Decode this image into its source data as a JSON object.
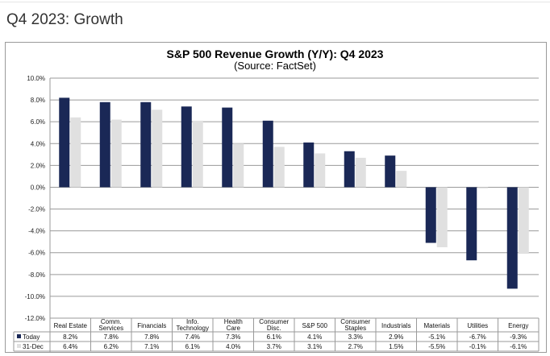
{
  "page": {
    "heading": "Q4 2023: Growth"
  },
  "colors": {
    "today": "#1a2856",
    "dec31": "#e0e0e0",
    "grid": "#9a9a9a",
    "frame": "#9a9a9a"
  },
  "chart_data": {
    "type": "bar",
    "title": "S&P 500 Revenue Growth (Y/Y): Q4 2023",
    "subtitle": "(Source: FactSet)",
    "xlabel": "",
    "ylabel": "",
    "ylim": [
      -12,
      10
    ],
    "ytick_step": 2,
    "yticks": [
      "10.0%",
      "8.0%",
      "6.0%",
      "4.0%",
      "2.0%",
      "0.0%",
      "-2.0%",
      "-4.0%",
      "-6.0%",
      "-8.0%",
      "-10.0%",
      "-12.0%"
    ],
    "grid": true,
    "legend": "data-table-bottom",
    "categories": [
      [
        "Real Estate"
      ],
      [
        "Comm.",
        "Services"
      ],
      [
        "Financials"
      ],
      [
        "Info.",
        "Technology"
      ],
      [
        "Health",
        "Care"
      ],
      [
        "Consumer",
        "Disc."
      ],
      [
        "S&P 500"
      ],
      [
        "Consumer",
        "Staples"
      ],
      [
        "Industrials"
      ],
      [
        "Materials"
      ],
      [
        "Utilities"
      ],
      [
        "Energy"
      ]
    ],
    "series": [
      {
        "name": "Today",
        "values": [
          8.2,
          7.8,
          7.8,
          7.4,
          7.3,
          6.1,
          4.1,
          3.3,
          2.9,
          -5.1,
          -6.7,
          -9.3
        ],
        "labels": [
          "8.2%",
          "7.8%",
          "7.8%",
          "7.4%",
          "7.3%",
          "6.1%",
          "4.1%",
          "3.3%",
          "2.9%",
          "-5.1%",
          "-6.7%",
          "-9.3%"
        ]
      },
      {
        "name": "31-Dec",
        "values": [
          6.4,
          6.2,
          7.1,
          6.1,
          4.0,
          3.7,
          3.1,
          2.7,
          1.5,
          -5.5,
          -0.1,
          -6.1
        ],
        "labels": [
          "6.4%",
          "6.2%",
          "7.1%",
          "6.1%",
          "4.0%",
          "3.7%",
          "3.1%",
          "2.7%",
          "1.5%",
          "-5.5%",
          "-0.1%",
          "-6.1%"
        ]
      }
    ]
  }
}
